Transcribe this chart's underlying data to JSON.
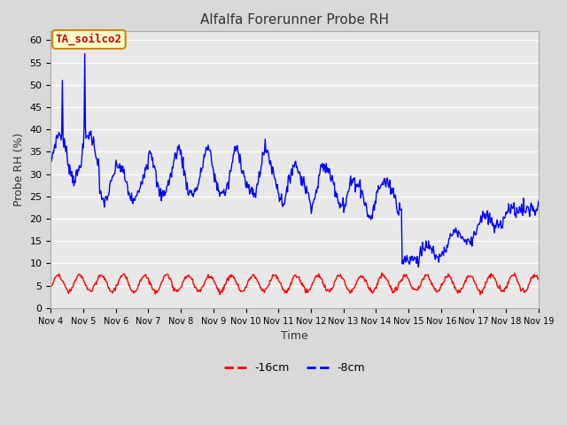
{
  "title": "Alfalfa Forerunner Probe RH",
  "xlabel": "Time",
  "ylabel": "Probe RH (%)",
  "ylim": [
    0,
    62
  ],
  "yticks": [
    0,
    5,
    10,
    15,
    20,
    25,
    30,
    35,
    40,
    45,
    50,
    55,
    60
  ],
  "annotation_text": "TA_soilco2",
  "annotation_bg": "#ffffcc",
  "annotation_border": "#cc8800",
  "annotation_text_color": "#cc0000",
  "legend_labels": [
    "-16cm",
    "-8cm"
  ],
  "legend_colors": [
    "#ff0000",
    "#0000ff"
  ],
  "fig_bg": "#d9d9d9",
  "plot_bg": "#e8e8e8",
  "n_points": 720,
  "x_start": 4,
  "x_end": 19,
  "xtick_positions": [
    4,
    5,
    6,
    7,
    8,
    9,
    10,
    11,
    12,
    13,
    14,
    15,
    16,
    17,
    18,
    19
  ],
  "xtick_labels": [
    "Nov 4",
    "Nov 5",
    "Nov 6",
    "Nov 7",
    "Nov 8",
    "Nov 9",
    "Nov 10",
    "Nov 11",
    "Nov 12",
    "Nov 13",
    "Nov 14",
    "Nov 15",
    "Nov 16",
    "Nov 17",
    "Nov 18",
    "Nov 19"
  ]
}
